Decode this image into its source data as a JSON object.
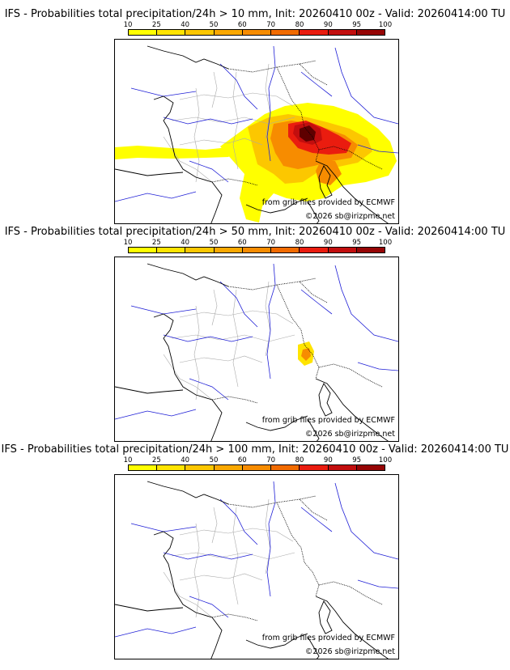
{
  "legend": {
    "ticks": [
      "10",
      "25",
      "40",
      "50",
      "60",
      "70",
      "80",
      "90",
      "95",
      "100"
    ],
    "colors": [
      "#ffff00",
      "#ffe400",
      "#fcc700",
      "#faa800",
      "#f78c00",
      "#f26b00",
      "#ea1c0f",
      "#c20e0e",
      "#960505",
      "#5e0000"
    ]
  },
  "colors": {
    "coast": "#000000",
    "border": "#000000",
    "river": "#1f1fd6",
    "admin": "#a9a9a9"
  },
  "panels": [
    {
      "title": "IFS - Probabilities total precipitation/24h > 10 mm, Init: 20260410 00z - Valid: 20260414:00 TU",
      "source_credit": "from grib files provided by ECMWF",
      "copyright": "©2026 sb@irizpme.net"
    },
    {
      "title": "IFS - Probabilities total precipitation/24h > 50 mm, Init: 20260410 00z - Valid: 20260414:00 TU",
      "source_credit": "from grib files provided by ECMWF",
      "copyright": "©2026 sb@irizpme.net"
    },
    {
      "title": "IFS - Probabilities total precipitation/24h > 100 mm, Init: 20260410 00z - Valid: 20260414:00 TU",
      "source_credit": "from grib files provided by ECMWF",
      "copyright": "©2026 sb@irizpme.net"
    }
  ]
}
